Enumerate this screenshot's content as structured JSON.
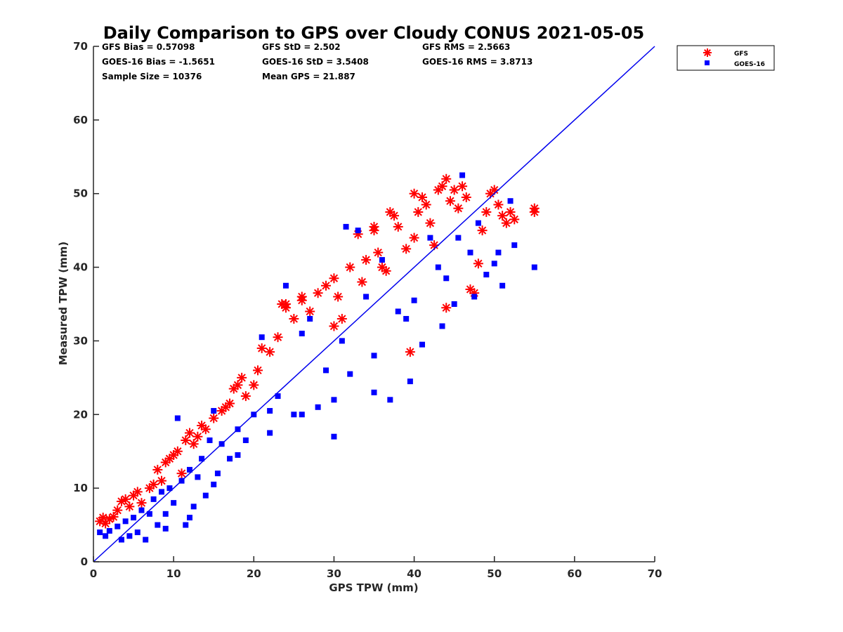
{
  "chart_data": {
    "type": "scatter",
    "title": "Daily Comparison to GPS over Cloudy CONUS 2021-05-05",
    "xlabel": "GPS TPW (mm)",
    "ylabel": "Measured TPW (mm)",
    "xlim": [
      0,
      70
    ],
    "ylim": [
      0,
      70
    ],
    "xticks": [
      "0",
      "10",
      "20",
      "30",
      "40",
      "50",
      "60",
      "70"
    ],
    "yticks": [
      "0",
      "10",
      "20",
      "30",
      "40",
      "50",
      "60",
      "70"
    ],
    "grid": false,
    "legend_position": "outside-top-right",
    "reference_line": {
      "x": [
        0,
        70
      ],
      "y": [
        0,
        70
      ],
      "color": "#0000ee"
    },
    "stats": [
      [
        "GFS Bias = 0.57098",
        "GFS StD = 2.502",
        "GFS RMS = 2.5663"
      ],
      [
        "GOES-16 Bias = -1.5651",
        "GOES-16 StD = 3.5408",
        "GOES-16 RMS = 3.8713"
      ],
      [
        "Sample Size = 10376",
        "Mean GPS = 21.887",
        ""
      ]
    ],
    "series": [
      {
        "name": "GFS",
        "marker": "asterisk",
        "color": "#ff0000",
        "points": [
          [
            0.8,
            5.5
          ],
          [
            1.2,
            6.0
          ],
          [
            1.5,
            5.2
          ],
          [
            2.0,
            5.8
          ],
          [
            2.5,
            6.1
          ],
          [
            3.0,
            7.0
          ],
          [
            3.5,
            8.2
          ],
          [
            4.0,
            8.5
          ],
          [
            4.5,
            7.5
          ],
          [
            5.0,
            9.0
          ],
          [
            5.5,
            9.5
          ],
          [
            6.0,
            8.0
          ],
          [
            7.0,
            10.0
          ],
          [
            7.5,
            10.5
          ],
          [
            8.0,
            12.5
          ],
          [
            8.5,
            11.0
          ],
          [
            9.0,
            13.5
          ],
          [
            9.5,
            14.0
          ],
          [
            10.0,
            14.5
          ],
          [
            10.5,
            15.0
          ],
          [
            11.0,
            12.0
          ],
          [
            11.5,
            16.5
          ],
          [
            12.0,
            17.5
          ],
          [
            12.5,
            16.0
          ],
          [
            13.0,
            17.0
          ],
          [
            13.5,
            18.5
          ],
          [
            14.0,
            18.0
          ],
          [
            15.0,
            19.5
          ],
          [
            16.0,
            20.5
          ],
          [
            16.5,
            21.0
          ],
          [
            17.0,
            21.5
          ],
          [
            17.5,
            23.5
          ],
          [
            18.0,
            24.0
          ],
          [
            18.5,
            25.0
          ],
          [
            19.0,
            22.5
          ],
          [
            20.0,
            24.0
          ],
          [
            20.5,
            26.0
          ],
          [
            21.0,
            29.0
          ],
          [
            22.0,
            28.5
          ],
          [
            23.0,
            30.5
          ],
          [
            23.5,
            35.0
          ],
          [
            24.0,
            34.5
          ],
          [
            25.0,
            33.0
          ],
          [
            26.0,
            35.5
          ],
          [
            27.0,
            34.0
          ],
          [
            28.0,
            36.5
          ],
          [
            29.0,
            37.5
          ],
          [
            30.0,
            38.5
          ],
          [
            30.5,
            36.0
          ],
          [
            31.0,
            33.0
          ],
          [
            32.0,
            40.0
          ],
          [
            33.0,
            44.5
          ],
          [
            33.5,
            38.0
          ],
          [
            34.0,
            41.0
          ],
          [
            35.0,
            45.5
          ],
          [
            35.5,
            42.0
          ],
          [
            36.0,
            40.0
          ],
          [
            36.5,
            39.5
          ],
          [
            37.0,
            47.5
          ],
          [
            37.5,
            47.0
          ],
          [
            38.0,
            45.5
          ],
          [
            39.0,
            42.5
          ],
          [
            39.5,
            28.5
          ],
          [
            40.0,
            44.0
          ],
          [
            40.5,
            47.5
          ],
          [
            41.0,
            49.5
          ],
          [
            41.5,
            48.5
          ],
          [
            42.0,
            46.0
          ],
          [
            42.5,
            43.0
          ],
          [
            43.0,
            50.5
          ],
          [
            43.5,
            51.0
          ],
          [
            44.0,
            34.5
          ],
          [
            44.5,
            49.0
          ],
          [
            45.0,
            50.5
          ],
          [
            45.5,
            48.0
          ],
          [
            46.0,
            51.0
          ],
          [
            46.5,
            49.5
          ],
          [
            47.0,
            37.0
          ],
          [
            47.5,
            36.5
          ],
          [
            48.0,
            40.5
          ],
          [
            48.5,
            45.0
          ],
          [
            49.0,
            47.5
          ],
          [
            49.5,
            50.0
          ],
          [
            50.0,
            50.5
          ],
          [
            50.5,
            48.5
          ],
          [
            51.0,
            47.0
          ],
          [
            51.5,
            46.0
          ],
          [
            52.0,
            47.5
          ],
          [
            52.5,
            46.5
          ],
          [
            55.0,
            47.5
          ],
          [
            55.0,
            48.0
          ],
          [
            24.0,
            35.0
          ],
          [
            26.0,
            36.0
          ],
          [
            30.0,
            32.0
          ],
          [
            35.0,
            45.0
          ],
          [
            40.0,
            50.0
          ],
          [
            44.0,
            52.0
          ]
        ]
      },
      {
        "name": "GOES-16",
        "marker": "square",
        "color": "#0000ff",
        "points": [
          [
            0.8,
            4.0
          ],
          [
            1.5,
            3.5
          ],
          [
            2.0,
            4.2
          ],
          [
            3.0,
            4.8
          ],
          [
            3.5,
            3.0
          ],
          [
            4.0,
            5.5
          ],
          [
            4.5,
            3.5
          ],
          [
            5.0,
            6.0
          ],
          [
            5.5,
            4.0
          ],
          [
            6.0,
            7.0
          ],
          [
            6.5,
            3.0
          ],
          [
            7.0,
            6.5
          ],
          [
            7.5,
            8.5
          ],
          [
            8.0,
            5.0
          ],
          [
            8.5,
            9.5
          ],
          [
            9.0,
            6.5
          ],
          [
            9.5,
            10.0
          ],
          [
            10.0,
            8.0
          ],
          [
            10.5,
            19.5
          ],
          [
            11.0,
            11.0
          ],
          [
            11.5,
            5.0
          ],
          [
            12.0,
            12.5
          ],
          [
            12.5,
            7.5
          ],
          [
            13.0,
            11.5
          ],
          [
            13.5,
            14.0
          ],
          [
            14.0,
            9.0
          ],
          [
            14.5,
            16.5
          ],
          [
            15.0,
            20.5
          ],
          [
            15.5,
            12.0
          ],
          [
            16.0,
            16.0
          ],
          [
            17.0,
            14.0
          ],
          [
            18.0,
            18.0
          ],
          [
            19.0,
            16.5
          ],
          [
            20.0,
            20.0
          ],
          [
            21.0,
            30.5
          ],
          [
            22.0,
            20.5
          ],
          [
            23.0,
            22.5
          ],
          [
            24.0,
            37.5
          ],
          [
            25.0,
            20.0
          ],
          [
            26.0,
            31.0
          ],
          [
            27.0,
            33.0
          ],
          [
            28.0,
            21.0
          ],
          [
            29.0,
            26.0
          ],
          [
            30.0,
            22.0
          ],
          [
            31.0,
            30.0
          ],
          [
            31.5,
            45.5
          ],
          [
            32.0,
            25.5
          ],
          [
            33.0,
            45.0
          ],
          [
            34.0,
            36.0
          ],
          [
            35.0,
            28.0
          ],
          [
            36.0,
            41.0
          ],
          [
            37.0,
            22.0
          ],
          [
            38.0,
            34.0
          ],
          [
            39.0,
            33.0
          ],
          [
            39.5,
            24.5
          ],
          [
            40.0,
            35.5
          ],
          [
            41.0,
            29.5
          ],
          [
            42.0,
            44.0
          ],
          [
            43.0,
            40.0
          ],
          [
            43.5,
            32.0
          ],
          [
            44.0,
            38.5
          ],
          [
            45.0,
            35.0
          ],
          [
            45.5,
            44.0
          ],
          [
            46.0,
            52.5
          ],
          [
            47.0,
            42.0
          ],
          [
            47.5,
            36.0
          ],
          [
            48.0,
            46.0
          ],
          [
            49.0,
            39.0
          ],
          [
            50.0,
            40.5
          ],
          [
            50.5,
            42.0
          ],
          [
            51.0,
            37.5
          ],
          [
            52.0,
            49.0
          ],
          [
            52.5,
            43.0
          ],
          [
            55.0,
            40.0
          ],
          [
            9.0,
            4.5
          ],
          [
            12.0,
            6.0
          ],
          [
            15.0,
            10.5
          ],
          [
            18.0,
            14.5
          ],
          [
            22.0,
            17.5
          ],
          [
            26.0,
            20.0
          ],
          [
            30.0,
            17.0
          ],
          [
            35.0,
            23.0
          ]
        ]
      }
    ]
  }
}
